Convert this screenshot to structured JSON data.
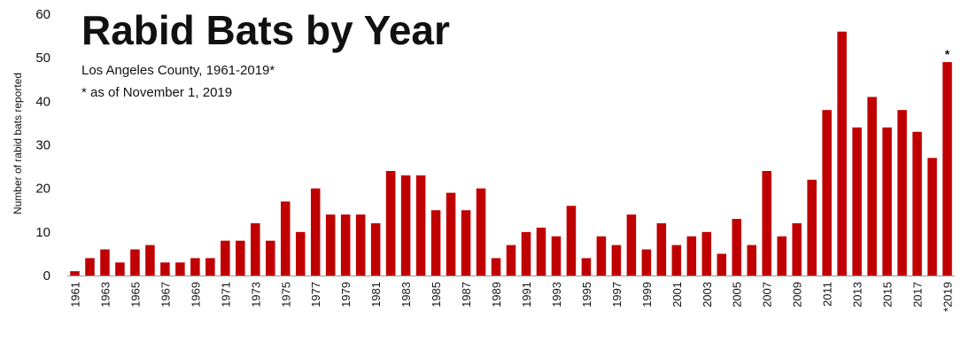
{
  "chart_data": {
    "type": "bar",
    "title": "Rabid Bats by Year",
    "subtitle": "Los Angeles County, 1961-2019*",
    "note": "* as of November 1, 2019",
    "ylabel": "Number of rabid bats reported",
    "xlabel": "",
    "ylim": [
      0,
      60
    ],
    "yticks": [
      0,
      10,
      20,
      30,
      40,
      50,
      60
    ],
    "color": "#c00000",
    "categories": [
      "1961",
      "1962",
      "1963",
      "1964",
      "1965",
      "1966",
      "1967",
      "1968",
      "1969",
      "1970",
      "1971",
      "1972",
      "1973",
      "1974",
      "1975",
      "1976",
      "1977",
      "1978",
      "1979",
      "1980",
      "1981",
      "1982",
      "1983",
      "1984",
      "1985",
      "1986",
      "1987",
      "1988",
      "1989",
      "1990",
      "1991",
      "1992",
      "1993",
      "1994",
      "1995",
      "1996",
      "1997",
      "1998",
      "1999",
      "2000",
      "2001",
      "2002",
      "2003",
      "2004",
      "2005",
      "2006",
      "2007",
      "2008",
      "2009",
      "2010",
      "2011",
      "2012",
      "2013",
      "2014",
      "2015",
      "2016",
      "2017",
      "2018",
      "2019"
    ],
    "tick_labels": [
      "1961",
      "1963",
      "1965",
      "1967",
      "1969",
      "1971",
      "1973",
      "1975",
      "1977",
      "1979",
      "1981",
      "1983",
      "1985",
      "1987",
      "1989",
      "1991",
      "1993",
      "1995",
      "1997",
      "1999",
      "2001",
      "2003",
      "2005",
      "2007",
      "2009",
      "2011",
      "2013",
      "2015",
      "2017",
      "*2019"
    ],
    "values": [
      1,
      4,
      6,
      3,
      6,
      7,
      3,
      3,
      4,
      4,
      8,
      8,
      12,
      8,
      17,
      10,
      20,
      14,
      14,
      14,
      12,
      24,
      23,
      23,
      15,
      19,
      15,
      20,
      4,
      7,
      10,
      11,
      9,
      16,
      4,
      9,
      7,
      14,
      6,
      12,
      7,
      9,
      10,
      5,
      13,
      7,
      24,
      9,
      12,
      22,
      38,
      56,
      34,
      41,
      34,
      38,
      33,
      27,
      49
    ],
    "bar_annotations": [
      {
        "category": "2019",
        "text": "*"
      }
    ],
    "grid": false,
    "legend": "none"
  }
}
